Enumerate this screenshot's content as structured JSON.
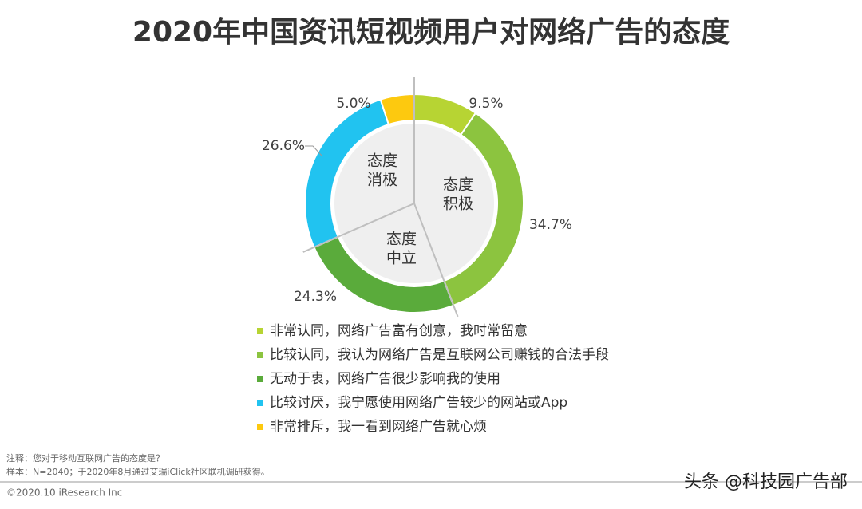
{
  "chart_data": {
    "type": "pie",
    "title": "2020年中国资讯短视频用户对网络广告的态度",
    "categories": [
      "非常认同，网络广告富有创意，我时常留意",
      "比较认同，我认为网络广告是互联网公司赚钱的合法手段",
      "无动于衷，网络广告很少影响我的使用",
      "比较讨厌，我宁愿使用网络广告较少的网站或App",
      "非常排斥，我一看到网络广告就心烦"
    ],
    "values": [
      9.5,
      34.7,
      24.3,
      26.6,
      5.0
    ],
    "value_labels": [
      "9.5%",
      "34.7%",
      "24.3%",
      "26.6%",
      "5.0%"
    ],
    "colors": [
      "#b7d433",
      "#8cc43f",
      "#5aab3b",
      "#21c3f0",
      "#fdc90f"
    ],
    "group_labels": [
      [
        "态度",
        "积极"
      ],
      [
        "态度",
        "中立"
      ],
      [
        "态度",
        "消极"
      ]
    ],
    "group_sizes": [
      2,
      1,
      2
    ]
  },
  "notes": [
    "注释：您对于移动互联网广告的态度是？",
    "样本：N=2040；于2020年8月通过艾瑞iClick社区联机调研获得。"
  ],
  "footer": "©2020.10 iResearch Inc",
  "watermark": "头条 @科技园广告部"
}
